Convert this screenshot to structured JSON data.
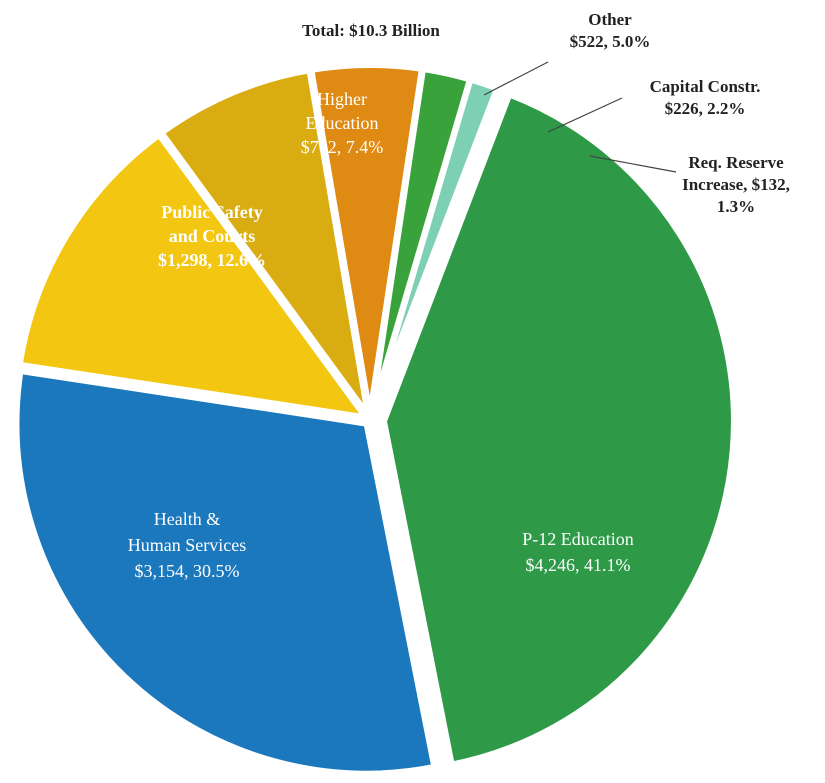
{
  "chart_data": {
    "type": "pie",
    "title": "Total:  $10.3 Billion",
    "slices": [
      {
        "key": "p12",
        "value": 4246,
        "percent": 41.1,
        "color": "#2e9a48",
        "label_lines": [
          "P-12 Education",
          "$4,246,  41.1%"
        ]
      },
      {
        "key": "health",
        "value": 3154,
        "percent": 30.5,
        "color": "#1c78bd",
        "label_lines": [
          "Health &",
          "Human Services",
          "$3,154, 30.5%"
        ]
      },
      {
        "key": "safety",
        "value": 1298,
        "percent": 12.6,
        "color": "#f2c611",
        "label_lines": [
          "Public Safety",
          "and Courts",
          "$1,298, 12.6%"
        ]
      },
      {
        "key": "higher",
        "value": 762,
        "percent": 7.4,
        "color": "#d9ad12",
        "label_lines": [
          "Higher",
          "Education",
          "$762, 7.4%"
        ]
      },
      {
        "key": "other",
        "value": 522,
        "percent": 5.0,
        "color": "#df8a12",
        "label_lines": [
          "Other",
          "$522, 5.0%"
        ]
      },
      {
        "key": "capital",
        "value": 226,
        "percent": 2.2,
        "color": "#3aa23a",
        "label_lines": [
          "Capital Constr.",
          "$226, 2.2%"
        ]
      },
      {
        "key": "reserve",
        "value": 132,
        "percent": 1.3,
        "color": "#7dd0b4",
        "label_lines": [
          "Req. Reserve",
          "Increase, $132,",
          "1.3%"
        ]
      }
    ]
  }
}
